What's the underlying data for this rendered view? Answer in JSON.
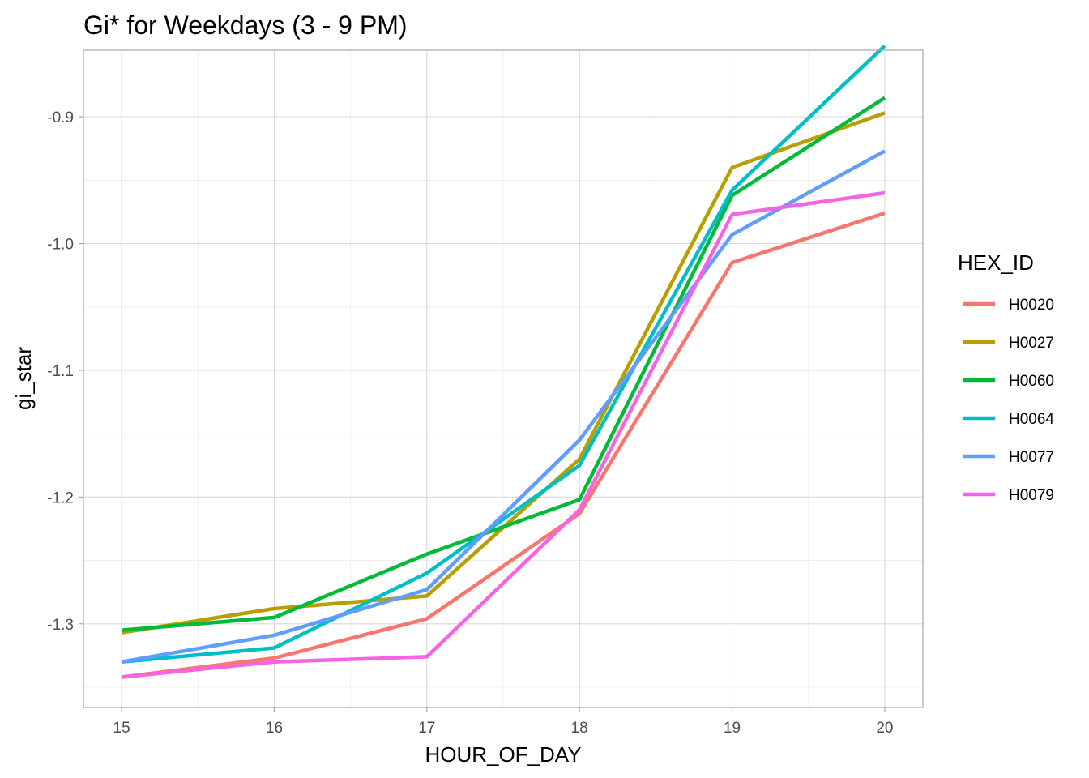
{
  "chart_data": {
    "type": "line",
    "title": "Gi* for Weekdays (3 - 9 PM)",
    "xlabel": "HOUR_OF_DAY",
    "ylabel": "gi_star",
    "x": [
      15,
      16,
      17,
      18,
      19,
      20
    ],
    "x_ticks": [
      "15",
      "16",
      "17",
      "18",
      "19",
      "20"
    ],
    "y_ticks": [
      -1.3,
      -1.2,
      -1.1,
      -1.0,
      -0.9
    ],
    "y_tick_labels": [
      "-1.3",
      "-1.2",
      "-1.1",
      "-1.0",
      "-0.9"
    ],
    "xlim": [
      14.75,
      20.25
    ],
    "ylim": [
      -1.366,
      -0.8475
    ],
    "grid": true,
    "legend": {
      "title": "HEX_ID",
      "position": "right"
    },
    "series": [
      {
        "name": "H0020",
        "color": "#F8766D",
        "values": [
          -1.342,
          -1.327,
          -1.296,
          -1.213,
          -1.015,
          -0.976
        ]
      },
      {
        "name": "H0027",
        "color": "#B79F00",
        "values": [
          -1.307,
          -1.288,
          -1.278,
          -1.17,
          -0.94,
          -0.897
        ]
      },
      {
        "name": "H0060",
        "color": "#00BA38",
        "values": [
          -1.305,
          -1.295,
          -1.245,
          -1.202,
          -0.962,
          -0.885
        ]
      },
      {
        "name": "H0064",
        "color": "#00BFC4",
        "values": [
          -1.33,
          -1.319,
          -1.26,
          -1.175,
          -0.958,
          -0.844
        ]
      },
      {
        "name": "H0077",
        "color": "#619CFF",
        "values": [
          -1.33,
          -1.309,
          -1.273,
          -1.155,
          -0.993,
          -0.927
        ]
      },
      {
        "name": "H0079",
        "color": "#F564E3",
        "values": [
          -1.342,
          -1.33,
          -1.326,
          -1.21,
          -0.977,
          -0.96
        ]
      }
    ]
  }
}
